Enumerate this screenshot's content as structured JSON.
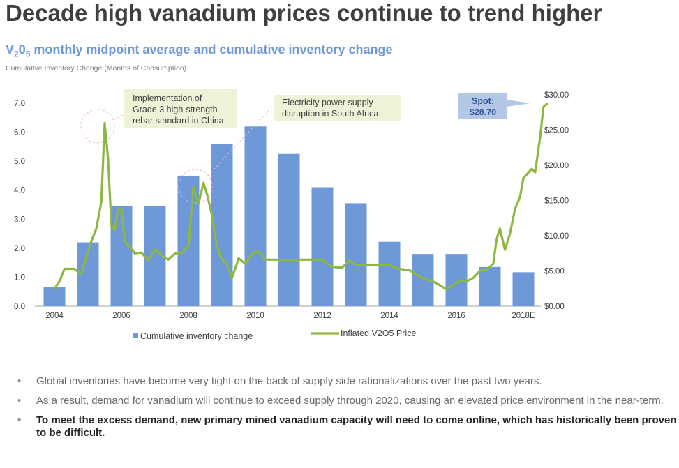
{
  "header": {
    "title": "Decade high vanadium prices continue to trend higher",
    "subtitle_main": "V",
    "subtitle_sub1": "2",
    "subtitle_mid": "0",
    "subtitle_sub2": "5",
    "subtitle_rest": " monthly midpoint average and cumulative inventory change",
    "axis_caption": "Cumulative Inventory Change (Months of Consumption)"
  },
  "chart_data": {
    "type": "bar+line",
    "left_axis": {
      "ticks": [
        "0.0",
        "1.0",
        "2.0",
        "3.0",
        "4.0",
        "5.0",
        "6.0",
        "7.0"
      ],
      "range": [
        0,
        7.2
      ]
    },
    "right_axis": {
      "ticks": [
        "$0.00",
        "$5.00",
        "$10.00",
        "$15.00",
        "$20.00",
        "$25.00",
        "$30.00"
      ],
      "range": [
        0,
        30
      ]
    },
    "x_tick_labels": [
      "2004",
      "2006",
      "2008",
      "2010",
      "2012",
      "2014",
      "2016",
      "2018E"
    ],
    "bars": {
      "name": "Cumulative inventory change",
      "color": "#6e98d8",
      "x": [
        2004,
        2005,
        2006,
        2007,
        2008,
        2009,
        2010,
        2011,
        2012,
        2013,
        2014,
        2015,
        2016,
        2017,
        2018
      ],
      "values": [
        0.65,
        2.2,
        3.45,
        3.45,
        4.5,
        5.6,
        6.2,
        5.25,
        4.1,
        3.55,
        2.22,
        1.8,
        1.8,
        1.35,
        1.17
      ]
    },
    "line": {
      "name": "Inflated V2O5 Price",
      "color": "#8db83f",
      "x": [
        2004.0,
        2004.15,
        2004.3,
        2004.45,
        2004.6,
        2004.8,
        2004.95,
        2005.1,
        2005.25,
        2005.4,
        2005.5,
        2005.6,
        2005.7,
        2005.8,
        2005.9,
        2006.0,
        2006.1,
        2006.2,
        2006.3,
        2006.4,
        2006.6,
        2006.8,
        2007.0,
        2007.2,
        2007.4,
        2007.6,
        2007.8,
        2008.0,
        2008.15,
        2008.3,
        2008.45,
        2008.55,
        2008.7,
        2008.85,
        2009.0,
        2009.15,
        2009.3,
        2009.5,
        2009.7,
        2009.9,
        2010.1,
        2010.3,
        2010.5,
        2010.7,
        2010.9,
        2011.2,
        2011.5,
        2011.8,
        2012.0,
        2012.2,
        2012.4,
        2012.6,
        2012.8,
        2013.0,
        2013.2,
        2013.5,
        2013.8,
        2014.0,
        2014.3,
        2014.6,
        2014.9,
        2015.1,
        2015.3,
        2015.5,
        2015.7,
        2015.9,
        2016.1,
        2016.3,
        2016.5,
        2016.7,
        2016.9,
        2017.1,
        2017.2,
        2017.3,
        2017.45,
        2017.6,
        2017.75,
        2017.9,
        2018.0,
        2018.1,
        2018.25,
        2018.35,
        2018.5,
        2018.6,
        2018.7
      ],
      "values": [
        2.5,
        3.5,
        5.3,
        5.3,
        5.3,
        4.5,
        7.0,
        9.2,
        11.0,
        14.8,
        26.0,
        21.0,
        11.5,
        10.8,
        13.8,
        13.7,
        9.2,
        8.7,
        8.2,
        7.5,
        7.6,
        6.5,
        8.1,
        7.2,
        6.6,
        7.5,
        7.6,
        8.5,
        17.0,
        14.5,
        17.5,
        16.0,
        13.0,
        8.5,
        6.6,
        6.0,
        4.0,
        6.8,
        6.0,
        7.5,
        7.8,
        6.6,
        6.6,
        6.6,
        6.6,
        6.6,
        6.6,
        6.6,
        6.6,
        5.8,
        5.5,
        5.5,
        6.5,
        5.8,
        5.8,
        5.8,
        5.8,
        5.8,
        5.3,
        5.1,
        4.2,
        3.8,
        3.5,
        3.0,
        2.4,
        3.0,
        3.6,
        3.5,
        4.0,
        5.0,
        5.2,
        6.0,
        9.5,
        11.0,
        8.0,
        10.3,
        13.8,
        15.5,
        18.2,
        18.7,
        19.5,
        19.0,
        24.0,
        28.3,
        28.7
      ]
    },
    "legend": [
      "Cumulative inventory change",
      "Inflated V2O5 Price"
    ]
  },
  "annotations": {
    "note1_lines": [
      "Implementation of",
      "Grade 3 high-strength",
      "rebar standard in China"
    ],
    "note2_lines": [
      "Electricity power supply",
      "disruption in South Africa"
    ],
    "spot_label": "Spot:",
    "spot_value": "$28.70",
    "note_bg": "#eef3d8",
    "spot_bg": "#b4c7e7"
  },
  "bullets": [
    "Global inventories have become very tight on the back of supply side rationalizations over the past two years.",
    "As a result, demand for vanadium will continue to exceed supply through 2020, causing an elevated price environment in the near-term.",
    "To meet the excess demand, new primary mined vanadium capacity will need to come online, which has historically been proven to be difficult."
  ],
  "bullet_glyph": "•"
}
